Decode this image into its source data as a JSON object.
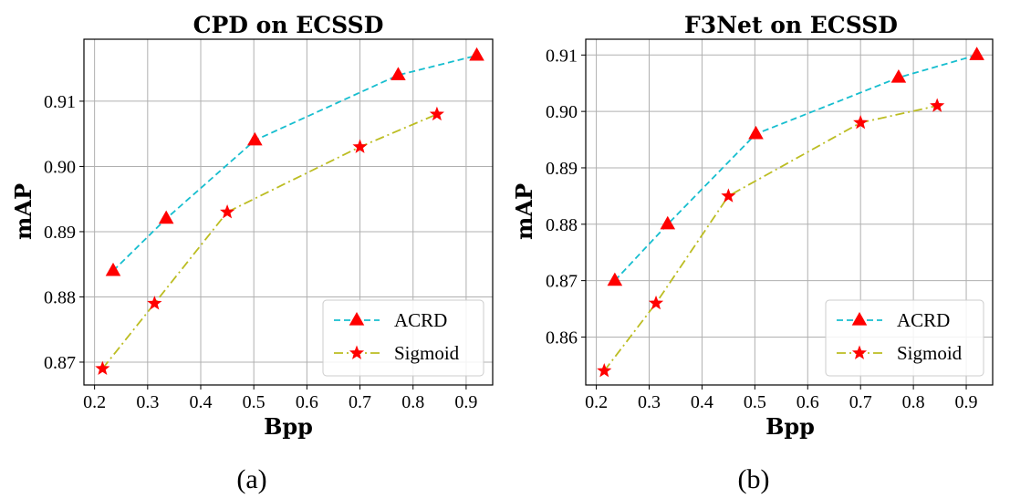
{
  "chart_data": [
    {
      "type": "line",
      "title": "CPD on ECSSD",
      "xlabel": "Bpp",
      "ylabel": "mAP",
      "caption": "(a)",
      "xlim": [
        0.18,
        0.95
      ],
      "ylim": [
        0.8665,
        0.9195
      ],
      "xticks": [
        0.2,
        0.3,
        0.4,
        0.5,
        0.6,
        0.7,
        0.8,
        0.9
      ],
      "yticks": [
        0.87,
        0.88,
        0.89,
        0.9,
        0.91
      ],
      "xtick_labels": [
        "0.2",
        "0.3",
        "0.4",
        "0.5",
        "0.6",
        "0.7",
        "0.8",
        "0.9"
      ],
      "ytick_labels": [
        "0.87",
        "0.88",
        "0.89",
        "0.90",
        "0.91"
      ],
      "grid": true,
      "legend_position": "lower-right",
      "series": [
        {
          "name": "ACRD",
          "color": "#17becf",
          "line_style": "dashed",
          "marker": "triangle",
          "marker_color": "#ff0000",
          "x": [
            0.235,
            0.335,
            0.502,
            0.772,
            0.92
          ],
          "y": [
            0.884,
            0.892,
            0.904,
            0.914,
            0.917
          ]
        },
        {
          "name": "Sigmoid",
          "color": "#bcbd22",
          "line_style": "dashdot",
          "marker": "star",
          "marker_color": "#ff0000",
          "x": [
            0.215,
            0.313,
            0.45,
            0.7,
            0.845
          ],
          "y": [
            0.869,
            0.879,
            0.893,
            0.903,
            0.908
          ]
        }
      ]
    },
    {
      "type": "line",
      "title": "F3Net on ECSSD",
      "xlabel": "Bpp",
      "ylabel": "mAP",
      "caption": "(b)",
      "xlim": [
        0.18,
        0.95
      ],
      "ylim": [
        0.8515,
        0.9128
      ],
      "xticks": [
        0.2,
        0.3,
        0.4,
        0.5,
        0.6,
        0.7,
        0.8,
        0.9
      ],
      "yticks": [
        0.86,
        0.87,
        0.88,
        0.89,
        0.9,
        0.91
      ],
      "xtick_labels": [
        "0.2",
        "0.3",
        "0.4",
        "0.5",
        "0.6",
        "0.7",
        "0.8",
        "0.9"
      ],
      "ytick_labels": [
        "0.86",
        "0.87",
        "0.88",
        "0.89",
        "0.90",
        "0.91"
      ],
      "grid": true,
      "legend_position": "lower-right",
      "series": [
        {
          "name": "ACRD",
          "color": "#17becf",
          "line_style": "dashed",
          "marker": "triangle",
          "marker_color": "#ff0000",
          "x": [
            0.235,
            0.335,
            0.502,
            0.772,
            0.92
          ],
          "y": [
            0.87,
            0.88,
            0.896,
            0.906,
            0.91
          ]
        },
        {
          "name": "Sigmoid",
          "color": "#bcbd22",
          "line_style": "dashdot",
          "marker": "star",
          "marker_color": "#ff0000",
          "x": [
            0.215,
            0.313,
            0.45,
            0.7,
            0.845
          ],
          "y": [
            0.854,
            0.866,
            0.885,
            0.898,
            0.901
          ]
        }
      ]
    }
  ]
}
